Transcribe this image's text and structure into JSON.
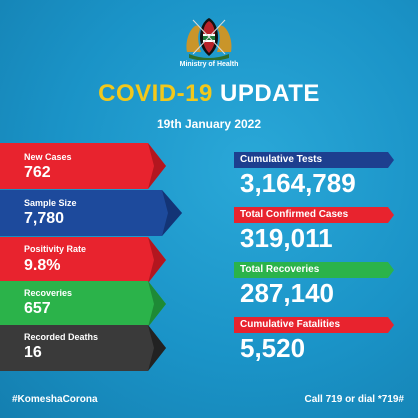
{
  "header": {
    "ministry": "Ministry of Health",
    "title_part1": "COVID-19",
    "title_part2": "UPDATE",
    "date": "19th January 2022"
  },
  "left_stats": [
    {
      "label": "New Cases",
      "value": "762",
      "color": "#e8232e"
    },
    {
      "label": "Sample Size",
      "value": "7,780",
      "color": "#1d4a9c"
    },
    {
      "label": "Positivity Rate",
      "value": "9.8%",
      "color": "#e8232e"
    },
    {
      "label": "Recoveries",
      "value": "657",
      "color": "#2bb34a"
    },
    {
      "label": "Recorded Deaths",
      "value": "16",
      "color": "#3a3a3a"
    }
  ],
  "right_stats": [
    {
      "label": "Cumulative Tests",
      "value": "3,164,789",
      "color": "#1d3f8f"
    },
    {
      "label": "Total Confirmed Cases",
      "value": "319,011",
      "color": "#e8232e"
    },
    {
      "label": "Total Recoveries",
      "value": "287,140",
      "color": "#2bb34a"
    },
    {
      "label": "Cumulative Fatalities",
      "value": "5,520",
      "color": "#e8232e"
    }
  ],
  "footer": {
    "hashtag": "#KomeshaCorona",
    "call": "Call 719 or dial *719#"
  },
  "colors": {
    "background": "#1a93c7",
    "title_accent": "#f2c81b"
  },
  "icons": {
    "emblem": "kenya-coat-of-arms-icon"
  }
}
